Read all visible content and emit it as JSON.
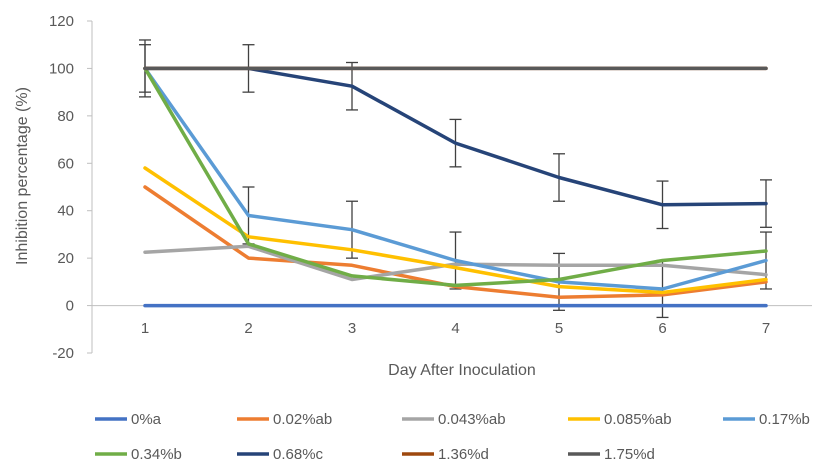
{
  "chart_data": {
    "type": "line",
    "title": "",
    "xlabel": "Day After Inoculation",
    "ylabel": "Inhibition percentage (%)",
    "x": [
      1,
      2,
      3,
      4,
      5,
      6,
      7
    ],
    "ylim": [
      -20,
      120
    ],
    "yticks": [
      -20,
      0,
      20,
      40,
      60,
      80,
      100,
      120
    ],
    "grid": false,
    "legend_position": "bottom",
    "series": [
      {
        "name": "0%a",
        "color": "#4472C4",
        "values": [
          0,
          0,
          0,
          0,
          0,
          0,
          0
        ],
        "errors": null
      },
      {
        "name": "0.02%ab",
        "color": "#ED7D31",
        "values": [
          50,
          20,
          17,
          8,
          3.5,
          4.5,
          10
        ],
        "errors": null
      },
      {
        "name": "0.043%ab",
        "color": "#A5A5A5",
        "values": [
          22.5,
          25,
          11,
          17.5,
          17,
          17,
          13
        ],
        "errors": null
      },
      {
        "name": "0.085%ab",
        "color": "#FFC000",
        "values": [
          58,
          29,
          23.5,
          16,
          8,
          5.5,
          11
        ],
        "errors": null
      },
      {
        "name": "0.17%b",
        "color": "#5B9BD5",
        "values": [
          100,
          38,
          32,
          19,
          10,
          7,
          19
        ],
        "errors": [
          12,
          12,
          12,
          12,
          12,
          12,
          12
        ]
      },
      {
        "name": "0.34%b",
        "color": "#70AD47",
        "values": [
          100,
          26,
          12.5,
          8.5,
          11,
          19,
          23
        ],
        "errors": null
      },
      {
        "name": "0.68%c",
        "color": "#264478",
        "values": [
          100,
          100,
          92.5,
          68.5,
          54,
          42.5,
          43
        ],
        "errors": [
          10,
          10,
          10,
          10,
          10,
          10,
          10
        ]
      },
      {
        "name": "1.36%d",
        "color": "#9E480E",
        "values": [
          100,
          100,
          100,
          100,
          100,
          100,
          100
        ],
        "errors": null
      },
      {
        "name": "1.75%d",
        "color": "#595959",
        "values": [
          100,
          100,
          100,
          100,
          100,
          100,
          100
        ],
        "errors": null
      }
    ]
  }
}
